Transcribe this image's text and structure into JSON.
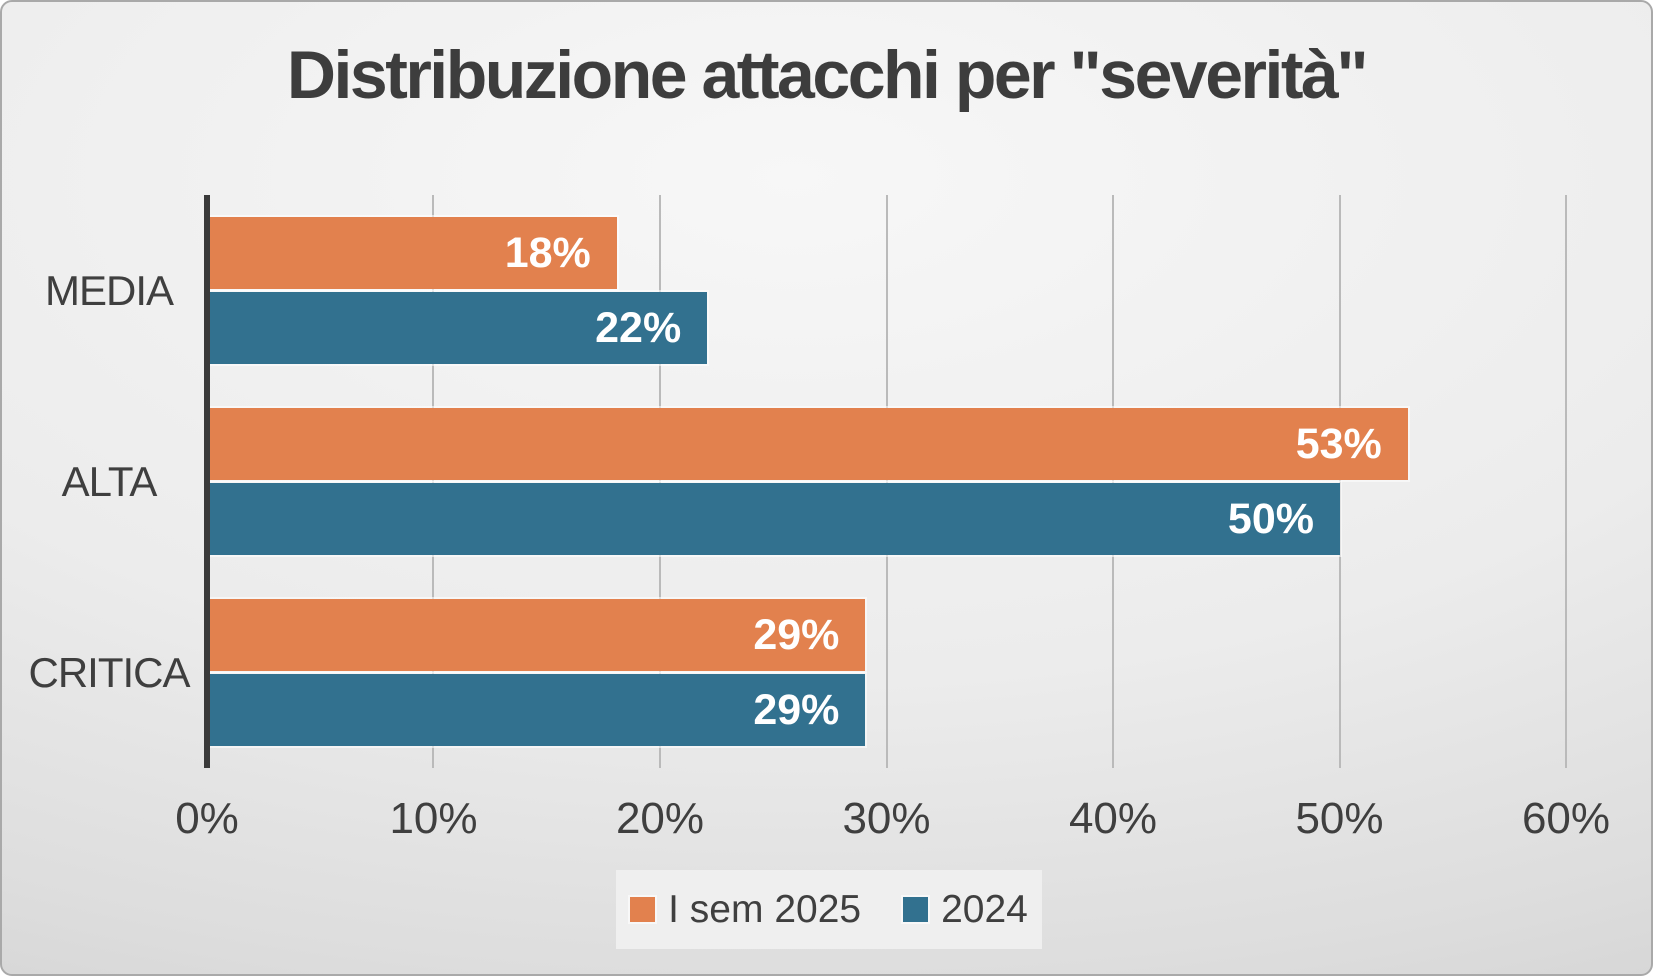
{
  "title": "Distribuzione attacchi per \"severità\"",
  "colors": {
    "title_text": "#3d3d3d",
    "axis_text": "#3f3f3f",
    "axis_line": "#3a3a3a",
    "gridline": "#bababa",
    "data_label": "#ffffff",
    "legend_bg": "#efefef",
    "series_2025": "#e2814e",
    "series_2024": "#32718f"
  },
  "chart_data": {
    "type": "bar",
    "orientation": "horizontal",
    "title": "Distribuzione attacchi per \"severità\"",
    "categories": [
      "MEDIA",
      "ALTA",
      "CRITICA"
    ],
    "series": [
      {
        "name": "I sem 2025",
        "color": "#e2814e",
        "values": [
          18,
          53,
          29
        ]
      },
      {
        "name": "2024",
        "color": "#32718f",
        "values": [
          22,
          50,
          29
        ]
      }
    ],
    "data_label_suffix": "%",
    "xlabel": "",
    "ylabel": "",
    "xlim": [
      0,
      60
    ],
    "x_tick_labels": [
      "0%",
      "10%",
      "20%",
      "30%",
      "40%",
      "50%",
      "60%"
    ],
    "grid": true,
    "legend_position": "bottom-center"
  }
}
